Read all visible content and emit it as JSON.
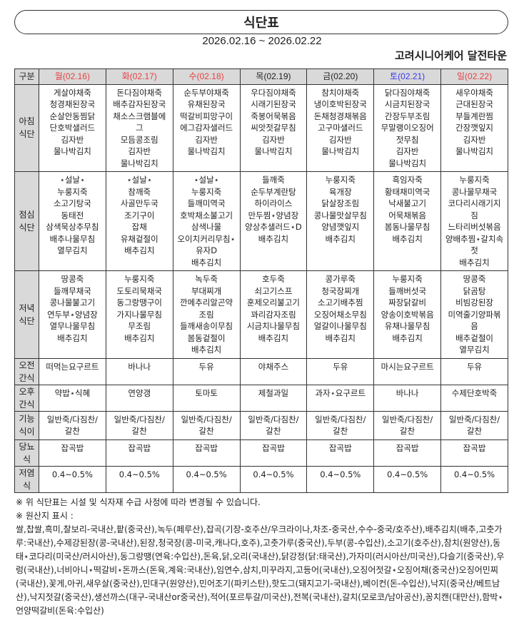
{
  "title": "식단표",
  "period": "2026.02.16 ~ 2026.02.22",
  "facility": "고려시니어케어 달전타운",
  "colors": {
    "holiday": "#e84040",
    "saturday": "#3a3af0",
    "weekday": "#222222",
    "header_bg": "#d9d9d9"
  },
  "table": {
    "corner": "구분",
    "days": [
      {
        "label": "월(02.16)",
        "color": "red"
      },
      {
        "label": "화(02.17)",
        "color": "red"
      },
      {
        "label": "수(02.18)",
        "color": "red"
      },
      {
        "label": "목(02.19)",
        "color": "black"
      },
      {
        "label": "금(02.20)",
        "color": "black"
      },
      {
        "label": "토(02.21)",
        "color": "blue"
      },
      {
        "label": "일(02.22)",
        "color": "red"
      }
    ],
    "rows": [
      {
        "label": "아침\n식단",
        "cells": [
          "게살야채죽\n청경채된장국\n순살안동찜닭\n단호박샐러드\n김자반\n물나박김치",
          "돈다짐야채죽\n배추감자된장국\n채소스크램블에\n그\n모듬콩조림\n김자반\n물나박김치",
          "순두부야채죽\n유채된장국\n떡갈비피망구이\n에그감자샐러드\n김자반\n물나박김치",
          "우다짐야채죽\n시래기된장국\n죽봉어묵볶음\n씨앗젓갈무침\n김자반\n물나박김치",
          "참치야채죽\n냉이호박된장국\n돈채청경채볶음\n고구마샐러드\n김자반\n물나박김치",
          "닭다짐야채죽\n시금치된장국\n간장두부조림\n무말랭이오징어\n젓무침\n김자반\n물나박김치",
          "새우야채죽\n근대된장국\n부들계란찜\n간장깻잎지\n김자반\n물나박김치"
        ]
      },
      {
        "label": "점심\n식단",
        "cells": [
          "⋆설날⋆\n누룽지죽\n소고기탕국\n동태전\n삼색묵상추무침\n배추나물무침\n열무김치",
          "⋆설날⋆\n참깨죽\n사골만두국\n조기구이\n잡채\n유채겉절이\n배추김치",
          "⋆설날⋆\n누룽지죽\n들깨미역국\n호박채소불고기\n삼색나물\n오이치커리무침⋆\n유자D\n배추김치",
          "들깨죽\n순두부계란탕\n하이라이스\n만두찜⋆양념장\n양상추샐러드⋆D\n배추김치",
          "누룽지죽\n육개장\n닭살장조림\n콩나물맛살무침\n양념깻잎지\n배추김치",
          "흑임자죽\n황태채미역국\n낙새불고기\n어묵채볶음\n봄동나물무침\n배추김치",
          "누룽지죽\n콩나물무채국\n코다리시래기지\n짐\n느타리버섯볶음\n양배추찜⋆갈치속\n젓\n배추김치"
        ]
      },
      {
        "label": "저녁\n식단",
        "cells": [
          "땅콩죽\n들깨무채국\n콩나물불고기\n연두부⋆양념장\n열무나물무침\n배추김치",
          "누룽지죽\n도토리묵채국\n동그랑땡구이\n가지나물무침\n무조림\n배추김치",
          "녹두죽\n부대찌개\n깐메추리알곤약\n조림\n들깨새송이무침\n봄동겉절이\n배추김치",
          "호두죽\n쇠고기스프\n훈제오리불고기\n꽈리감자조림\n시금치나물무침\n배추김치",
          "콩가루죽\n청국장찌개\n소고기배추찜\n오징어채소무침\n얼갈이나물무침\n배추김치",
          "누룽지죽\n들깨버섯국\n짜장닭갈비\n양송이호박볶음\n유채나물무침\n배추김치",
          "땅콩죽\n닭곰탕\n비빔강된장\n미역줄기양파볶\n음\n배추겉절이\n열무김치"
        ]
      },
      {
        "label": "오전\n간식",
        "cells": [
          "떠먹는요구르트",
          "바나나",
          "두유",
          "야채주스",
          "두유",
          "마시는요구르트",
          "두유"
        ]
      },
      {
        "label": "오후\n간식",
        "cells": [
          "약밥⋆식혜",
          "연양갱",
          "토마토",
          "제철과일",
          "과자⋆요구르트",
          "바나나",
          "수제단호박죽"
        ]
      },
      {
        "label": "기능\n식이",
        "cells": [
          "일반죽/다짐찬/\n갈찬",
          "일반죽/다짐찬/\n갈찬",
          "일반죽/다짐찬/\n갈찬",
          "일반죽/다짐찬/\n갈찬",
          "일반죽/다짐찬/\n갈찬",
          "일반죽/다짐찬/\n갈찬",
          "일반죽/다짐찬/\n갈찬"
        ]
      },
      {
        "label": "당뇨\n식",
        "cells": [
          "잡곡밥",
          "잡곡밥",
          "잡곡밥",
          "잡곡밥",
          "잡곡밥",
          "잡곡밥",
          "잡곡밥"
        ]
      },
      {
        "label": "저염\n식",
        "cells": [
          "0.4~0.5%",
          "0.4~0.5%",
          "0.4~0.5%",
          "0.4~0.5%",
          "0.4~0.5%",
          "0.4~0.5%",
          "0.4~0.5%"
        ]
      }
    ]
  },
  "notes": {
    "notice": "※ 위 식단표는 시설 및 식자재 수급 사정에 따라 변경될 수 있습니다.",
    "origin_heading": "※ 원산지 표시 :",
    "origin_text": "쌀,찹쌀,흑미,찰보리-국내산,팥(중국산),녹두(페루산),잡곡(기장-호주산/우크라이나,차조-중국산,수수-중국/호주산),배추김치(배추,고춧가루:국내산),수제강된장(콩-국내산),된장,청국장(콩-미국,캐나다,호주),고춧가루(중국산),두부(콩-수입산),소고기(호주산),참치(원양산),동태⋆코다리(미국산/러시아산),동그랑땡(연육:수입산),돈육,닭,오리(국내산),닭강정(닭:태국산),가자미(러시아산/미국산),다슬기(중국산),우렁(국내산),너비아니⋆떡갈비⋆돈까스(돈육,계육:국내산),임연수,삼치,미꾸라지,고등어(국내산),오징어젓갈⋆오징어채(중국산)오징어민찌(국내산),꽃게,아귀,새우살(중국산),민대구(원양산),민어조기(파키스탄),핫도그(돼지고기-국내산),베이컨(돈-수입산),낙지(중국산/베트남산),낙지젓갈(중국산),생선까스(대구-국내산or중국산),적어(포르투갈/미국산),전복(국내산),갈치(모로코/남아공산),꽁치캔(대만산),함박⋆언양떡갈비(돈육:수입산)"
  }
}
